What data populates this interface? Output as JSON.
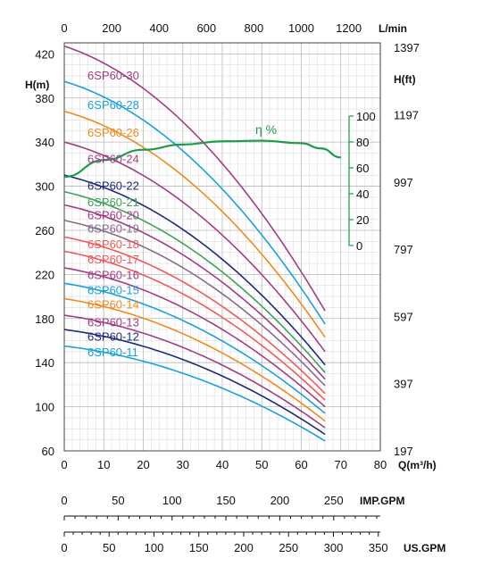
{
  "chart_data": {
    "type": "line",
    "xlabel": "Q(m³/h)",
    "ylabel": "H(m)",
    "ylabel_right": "H(ft)",
    "top_axis_unit": "L/min",
    "xlim": [
      0,
      80
    ],
    "ylim": [
      60,
      430
    ],
    "x_ticks": [
      "0",
      "10",
      "20",
      "30",
      "40",
      "50",
      "60",
      "70",
      "80"
    ],
    "y_ticks": [
      "60",
      "100",
      "140",
      "180",
      "220",
      "260",
      "300",
      "340",
      "380",
      "420"
    ],
    "y_values": [
      60,
      100,
      140,
      180,
      220,
      260,
      300,
      340,
      380,
      420
    ],
    "top_ticks": [
      "0",
      "200",
      "400",
      "600",
      "800",
      "1000",
      "1200"
    ],
    "top_values": [
      0,
      200,
      400,
      600,
      800,
      1000,
      1200
    ],
    "right_ticks": [
      "197",
      "397",
      "597",
      "797",
      "997",
      "1197",
      "1397"
    ],
    "right_values": [
      197,
      397,
      597,
      797,
      997,
      1197,
      1397
    ],
    "efficiency": {
      "label": "η %",
      "ticks": [
        "0",
        "20",
        "40",
        "60",
        "80",
        "100"
      ],
      "tick_values": [
        0,
        20,
        40,
        60,
        80,
        100
      ],
      "points": [
        [
          0,
          53
        ],
        [
          10,
          66
        ],
        [
          20,
          74
        ],
        [
          30,
          78
        ],
        [
          40,
          80.5
        ],
        [
          50,
          81
        ],
        [
          60,
          79
        ],
        [
          65,
          75
        ],
        [
          70,
          68
        ]
      ]
    },
    "imp_gpm": {
      "unit": "IMP.GPM",
      "ticks": [
        "0",
        "50",
        "100",
        "150",
        "200",
        "250"
      ],
      "values": [
        0,
        50,
        100,
        150,
        200,
        250
      ]
    },
    "us_gpm": {
      "unit": "US.GPM",
      "ticks": [
        "0",
        "50",
        "100",
        "150",
        "200",
        "250",
        "300",
        "350"
      ],
      "values": [
        0,
        50,
        100,
        150,
        200,
        250,
        300,
        350
      ]
    },
    "series": [
      {
        "name": "6SP60-30",
        "color": "#a23d84",
        "shutoff": 427,
        "end": 187,
        "label_y": 401
      },
      {
        "name": "6SP60-28",
        "color": "#1aa1dc",
        "shutoff": 395,
        "end": 175,
        "label_y": 374
      },
      {
        "name": "6SP60-26",
        "color": "#f08a1e",
        "shutoff": 368,
        "end": 163,
        "label_y": 349
      },
      {
        "name": "6SP60-24",
        "color": "#a23d84",
        "shutoff": 340,
        "end": 150,
        "label_y": 325
      },
      {
        "name": "6SP60-22",
        "color": "#1f2a7a",
        "shutoff": 310,
        "end": 138,
        "label_y": 301
      },
      {
        "name": "6SP60-21",
        "color": "#3fa35a",
        "shutoff": 295,
        "end": 131,
        "label_y": 286
      },
      {
        "name": "6SP60-20",
        "color": "#a23d84",
        "shutoff": 283,
        "end": 125,
        "label_y": 274
      },
      {
        "name": "6SP60-19",
        "color": "#8a6b86",
        "shutoff": 269,
        "end": 119,
        "label_y": 262
      },
      {
        "name": "6SP60-18",
        "color": "#ef5b5b",
        "shutoff": 254,
        "end": 112,
        "label_y": 248
      },
      {
        "name": "6SP60-17",
        "color": "#ef5b5b",
        "shutoff": 241,
        "end": 106,
        "label_y": 234
      },
      {
        "name": "6SP60-16",
        "color": "#a23d84",
        "shutoff": 226,
        "end": 100,
        "label_y": 220
      },
      {
        "name": "6SP60-15",
        "color": "#1aa1dc",
        "shutoff": 212,
        "end": 94,
        "label_y": 206
      },
      {
        "name": "6SP60-14",
        "color": "#f08a1e",
        "shutoff": 198,
        "end": 87,
        "label_y": 193
      },
      {
        "name": "6SP60-13",
        "color": "#a23d84",
        "shutoff": 183,
        "end": 81,
        "label_y": 177
      },
      {
        "name": "6SP60-12",
        "color": "#1f2a7a",
        "shutoff": 170,
        "end": 75,
        "label_y": 164
      },
      {
        "name": "6SP60-11",
        "color": "#1aa1dc",
        "shutoff": 155,
        "end": 69,
        "label_y": 150
      }
    ],
    "x_end": 66,
    "grid": true
  }
}
